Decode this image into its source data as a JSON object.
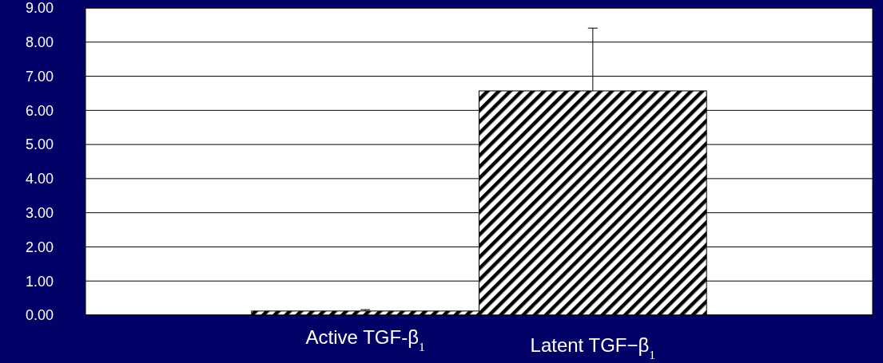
{
  "chart_data": {
    "type": "bar",
    "categories": [
      "Active TGF-β$_{1}$",
      "Latent TGF−β$_{1}$"
    ],
    "values": [
      0.12,
      6.57
    ],
    "errors": [
      0.04,
      1.84
    ],
    "color": "#000000",
    "ylim": [
      0,
      9
    ],
    "yticks": [
      {
        "value": 0,
        "label": "0.00"
      },
      {
        "value": 1,
        "label": "1.00"
      },
      {
        "value": 2,
        "label": "2.00"
      },
      {
        "value": 3,
        "label": "3.00"
      },
      {
        "value": 4,
        "label": "4.00"
      },
      {
        "value": 5,
        "label": "5.00"
      },
      {
        "value": 6,
        "label": "6.00"
      },
      {
        "value": 7,
        "label": "7.00"
      },
      {
        "value": 8,
        "label": "8.00"
      },
      {
        "value": 9,
        "label": "9.00"
      }
    ],
    "grid": "y"
  }
}
